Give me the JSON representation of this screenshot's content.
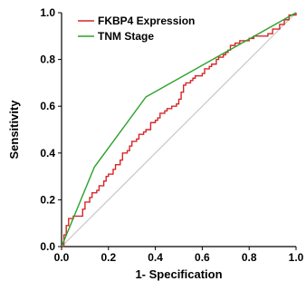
{
  "chart_data": {
    "type": "line",
    "title": "",
    "xlabel": "1- Specification",
    "ylabel": "Sensitivity",
    "xlim": [
      0.0,
      1.0
    ],
    "ylim": [
      0.0,
      1.0
    ],
    "x_ticks": [
      "0.0",
      "0.2",
      "0.4",
      "0.6",
      "0.8",
      "1.0"
    ],
    "y_ticks": [
      "0.0",
      "0.2",
      "0.4",
      "0.6",
      "0.8",
      "1.0"
    ],
    "grid": false,
    "legend_position": "top-left",
    "reference_line": {
      "x": [
        0,
        1
      ],
      "y": [
        0,
        1
      ],
      "color": "#c8c8c8"
    },
    "series": [
      {
        "name": "FKBP4 Expression",
        "color": "#d62728",
        "step": true,
        "x": [
          0.0,
          0.01,
          0.02,
          0.03,
          0.05,
          0.07,
          0.09,
          0.1,
          0.12,
          0.13,
          0.15,
          0.16,
          0.18,
          0.19,
          0.2,
          0.22,
          0.23,
          0.25,
          0.26,
          0.28,
          0.29,
          0.3,
          0.32,
          0.33,
          0.35,
          0.36,
          0.37,
          0.38,
          0.4,
          0.41,
          0.42,
          0.44,
          0.45,
          0.47,
          0.49,
          0.5,
          0.51,
          0.52,
          0.53,
          0.55,
          0.56,
          0.57,
          0.58,
          0.6,
          0.61,
          0.63,
          0.64,
          0.66,
          0.67,
          0.69,
          0.7,
          0.71,
          0.72,
          0.74,
          0.76,
          0.78,
          0.8,
          0.82,
          0.85,
          0.88,
          0.9,
          0.93,
          0.95,
          0.97,
          1.0
        ],
        "y": [
          0.0,
          0.05,
          0.09,
          0.12,
          0.13,
          0.13,
          0.16,
          0.19,
          0.21,
          0.23,
          0.24,
          0.26,
          0.28,
          0.3,
          0.31,
          0.33,
          0.35,
          0.37,
          0.4,
          0.41,
          0.43,
          0.45,
          0.46,
          0.48,
          0.49,
          0.5,
          0.5,
          0.53,
          0.54,
          0.55,
          0.57,
          0.58,
          0.59,
          0.6,
          0.61,
          0.63,
          0.66,
          0.69,
          0.7,
          0.71,
          0.72,
          0.73,
          0.73,
          0.74,
          0.76,
          0.77,
          0.78,
          0.8,
          0.81,
          0.82,
          0.83,
          0.84,
          0.86,
          0.87,
          0.88,
          0.88,
          0.89,
          0.9,
          0.9,
          0.91,
          0.93,
          0.95,
          0.97,
          0.99,
          1.0
        ]
      },
      {
        "name": "TNM Stage",
        "color": "#2ca02c",
        "step": false,
        "x": [
          0.0,
          0.14,
          0.36,
          1.0
        ],
        "y": [
          0.0,
          0.34,
          0.64,
          1.0
        ]
      }
    ]
  }
}
